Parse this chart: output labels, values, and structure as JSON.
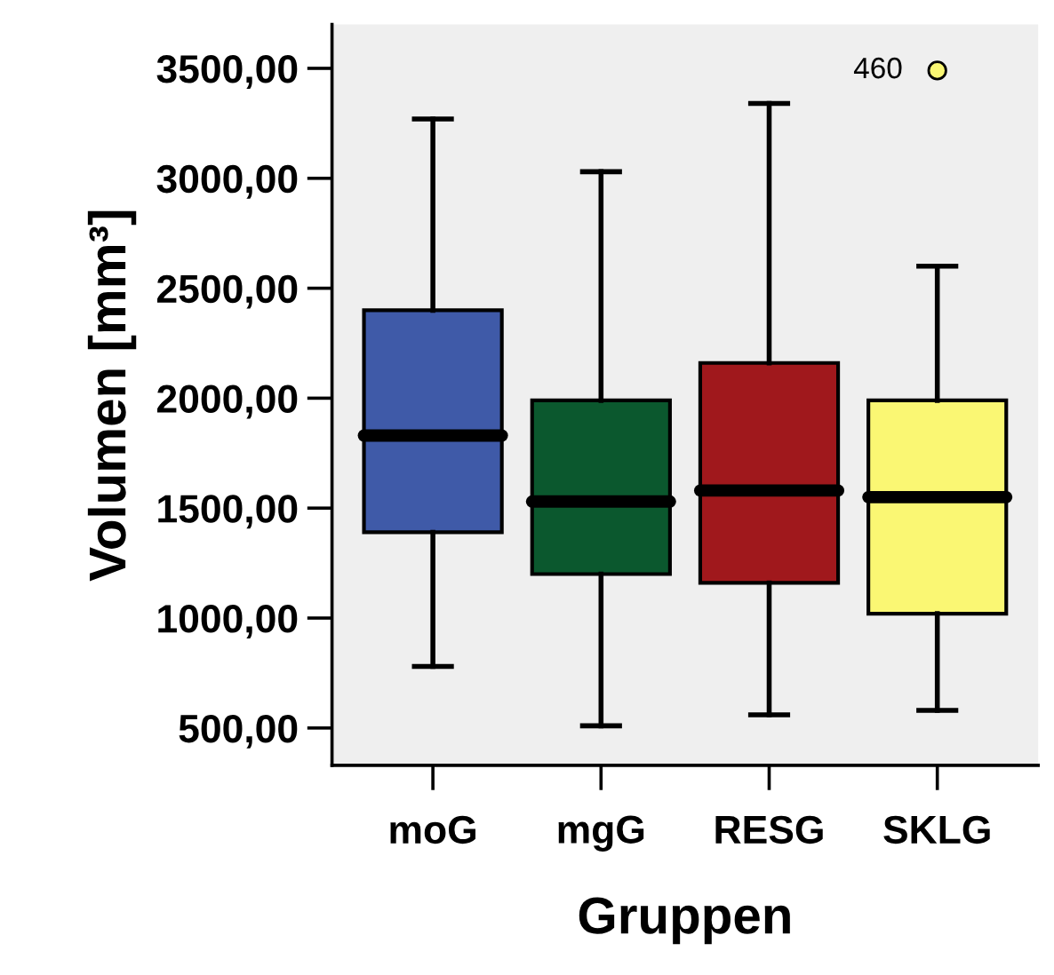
{
  "chart_data": {
    "type": "box",
    "xlabel": "Gruppen",
    "ylabel": "Volumen [mm³]",
    "categories": [
      "moG",
      "mgG",
      "RESG",
      "SKLG"
    ],
    "colors": [
      "#3f5aa8",
      "#0b582e",
      "#a0181c",
      "#faf773"
    ],
    "boxes": [
      {
        "low": 780,
        "q1": 1390,
        "median": 1830,
        "q3": 2400,
        "high": 3270
      },
      {
        "low": 510,
        "q1": 1200,
        "median": 1530,
        "q3": 1990,
        "high": 3030
      },
      {
        "low": 560,
        "q1": 1160,
        "median": 1580,
        "q3": 2160,
        "high": 3340
      },
      {
        "low": 580,
        "q1": 1020,
        "median": 1550,
        "q3": 1990,
        "high": 2600,
        "outliers": [
          3490
        ]
      }
    ],
    "annotations": [
      "460"
    ],
    "ylim": [
      330,
      3700
    ],
    "yticks": [
      {
        "value": 500,
        "label": "500,00"
      },
      {
        "value": 1000,
        "label": "1000,00"
      },
      {
        "value": 1500,
        "label": "1500,00"
      },
      {
        "value": 2000,
        "label": "2000,00"
      },
      {
        "value": 2500,
        "label": "2500,00"
      },
      {
        "value": 3000,
        "label": "3000,00"
      },
      {
        "value": 3500,
        "label": "3500,00"
      }
    ],
    "grid": false,
    "legend": false
  }
}
